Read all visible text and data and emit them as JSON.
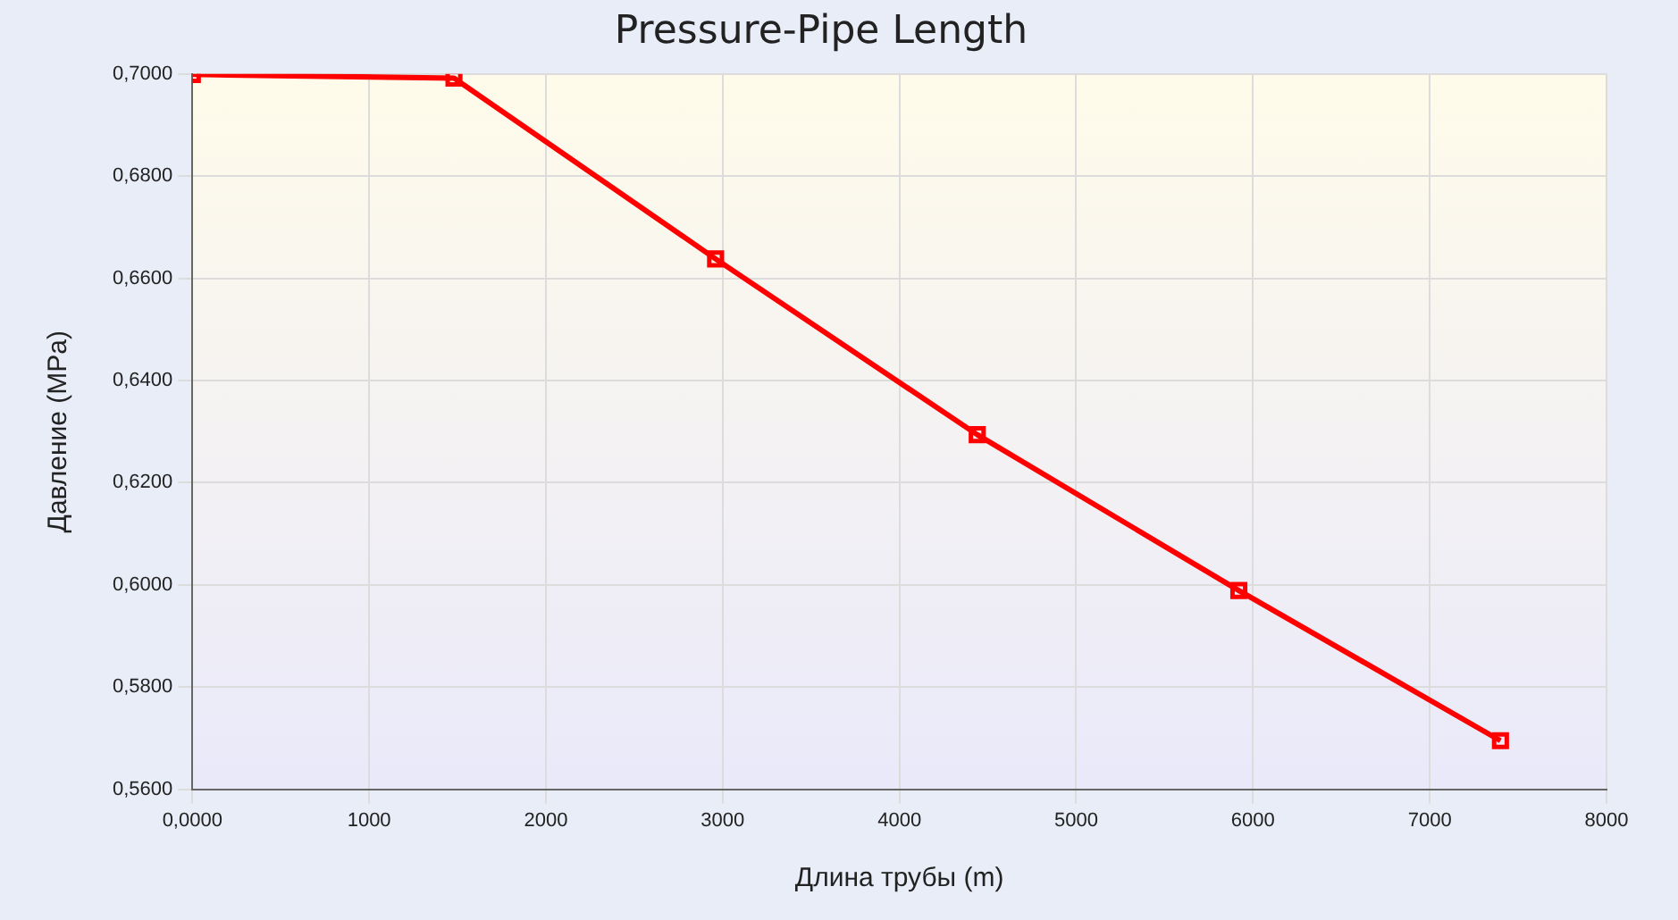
{
  "chart_data": {
    "type": "line",
    "title": "Pressure-Pipe Length",
    "xlabel": "Длина трубы (m)",
    "ylabel": "Давление (MPa)",
    "x": [
      0,
      1480,
      2960,
      4440,
      5920,
      7400
    ],
    "series": [
      {
        "color": "#ff0000",
        "values": [
          0.6999,
          0.6992,
          0.6638,
          0.6294,
          0.5989,
          0.5695
        ]
      }
    ],
    "xlim": [
      0,
      8000
    ],
    "xticks": [
      {
        "value": 0,
        "label": "0,0000"
      },
      1000,
      2000,
      3000,
      4000,
      5000,
      6000,
      7000,
      8000
    ],
    "ylim": [
      0.56,
      0.7
    ],
    "yticks": [
      {
        "value": 0.56,
        "label": "0,5600"
      },
      {
        "value": 0.58,
        "label": "0,5800"
      },
      {
        "value": 0.6,
        "label": "0,6000"
      },
      {
        "value": 0.62,
        "label": "0,6200"
      },
      {
        "value": 0.64,
        "label": "0,6400"
      },
      {
        "value": 0.66,
        "label": "0,6600"
      },
      {
        "value": 0.68,
        "label": "0,6800"
      },
      {
        "value": 0.7,
        "label": "0,7000"
      }
    ],
    "grid": true,
    "legend": false,
    "marker": "square",
    "line_style": "solid"
  }
}
